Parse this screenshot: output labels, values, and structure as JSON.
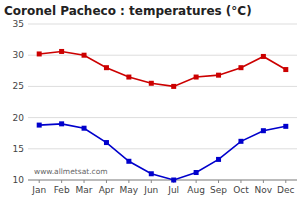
{
  "chart_data": {
    "type": "line",
    "title": "Coronel Pacheco : temperatures (°C)",
    "categories": [
      "Jan",
      "Feb",
      "Mar",
      "Apr",
      "May",
      "Jun",
      "Jul",
      "Aug",
      "Sep",
      "Oct",
      "Nov",
      "Dec"
    ],
    "series": [
      {
        "color": "#cc0000",
        "marker": "square",
        "values": [
          30.2,
          30.6,
          30.0,
          28.0,
          26.5,
          25.5,
          25.0,
          26.5,
          26.8,
          28.0,
          29.8,
          27.7
        ]
      },
      {
        "color": "#0000cc",
        "marker": "square",
        "values": [
          18.8,
          19.0,
          18.3,
          16.0,
          13.0,
          11.0,
          10.0,
          11.2,
          13.3,
          16.2,
          17.9,
          18.6
        ]
      }
    ],
    "ylim": [
      10,
      35
    ],
    "yticks": [
      10,
      15,
      20,
      25,
      30,
      35
    ],
    "grid": true,
    "annotations": [
      "www.allmetsat.com"
    ]
  }
}
